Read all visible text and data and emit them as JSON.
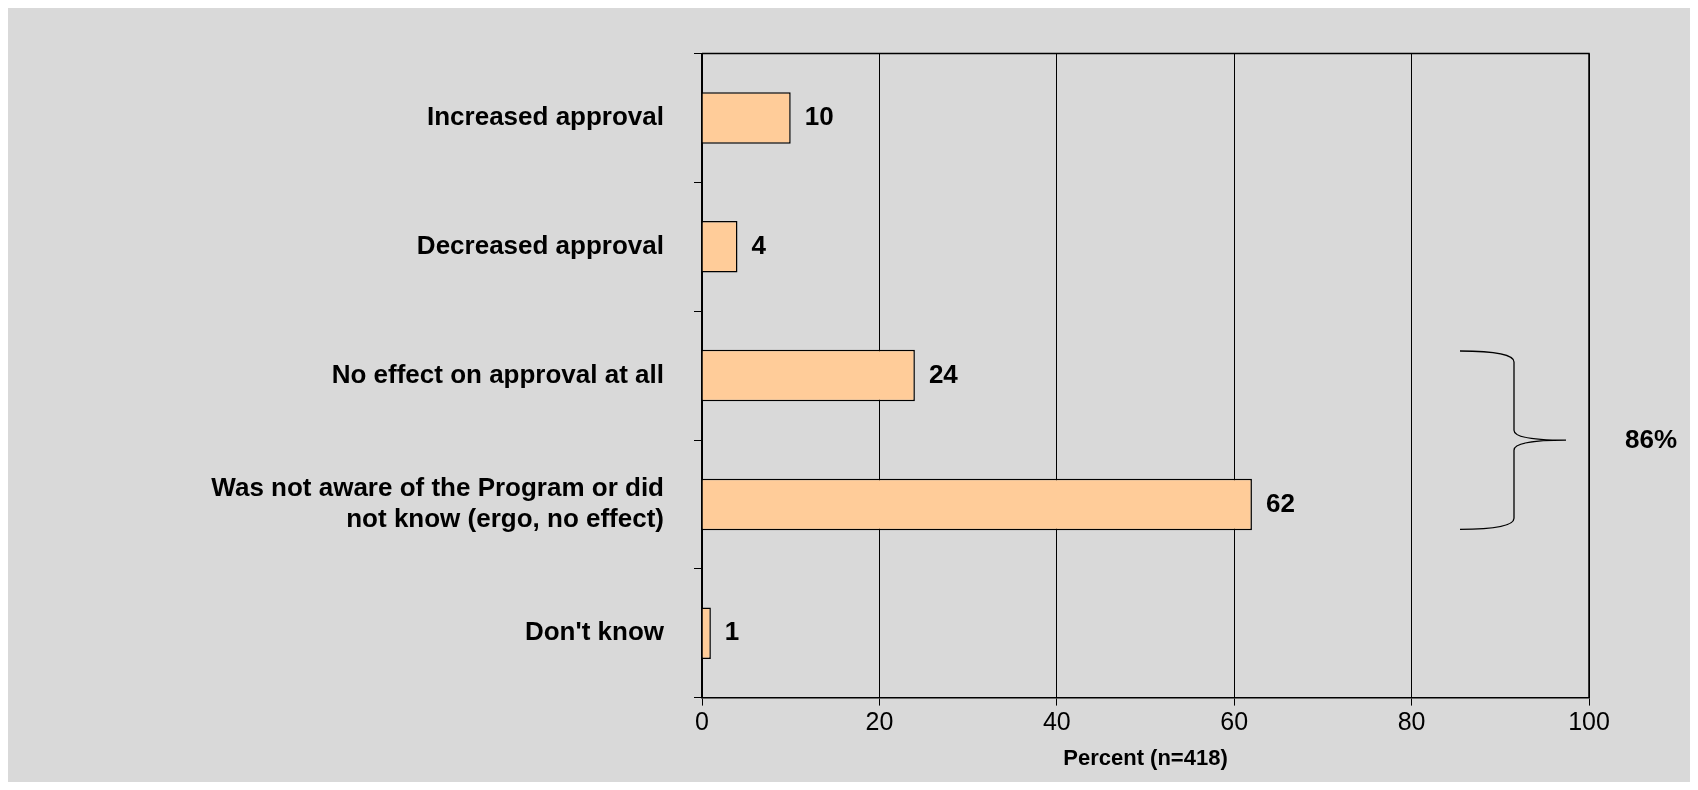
{
  "chart_data": {
    "type": "bar",
    "orientation": "horizontal",
    "xlabel": "Percent (n=418)",
    "categories": [
      "Increased approval",
      "Decreased approval",
      "No effect on approval at all",
      "Was not aware of the Program or did not know (ergo, no effect)",
      "Don't know"
    ],
    "values": [
      10,
      4,
      24,
      62,
      1
    ],
    "color": "#ffcc99",
    "data_labels": true,
    "xlim": [
      0,
      100
    ],
    "xticks": [
      0,
      20,
      40,
      60,
      80,
      100
    ],
    "grid": "x",
    "legend": false,
    "annotations": [
      "86%"
    ]
  }
}
